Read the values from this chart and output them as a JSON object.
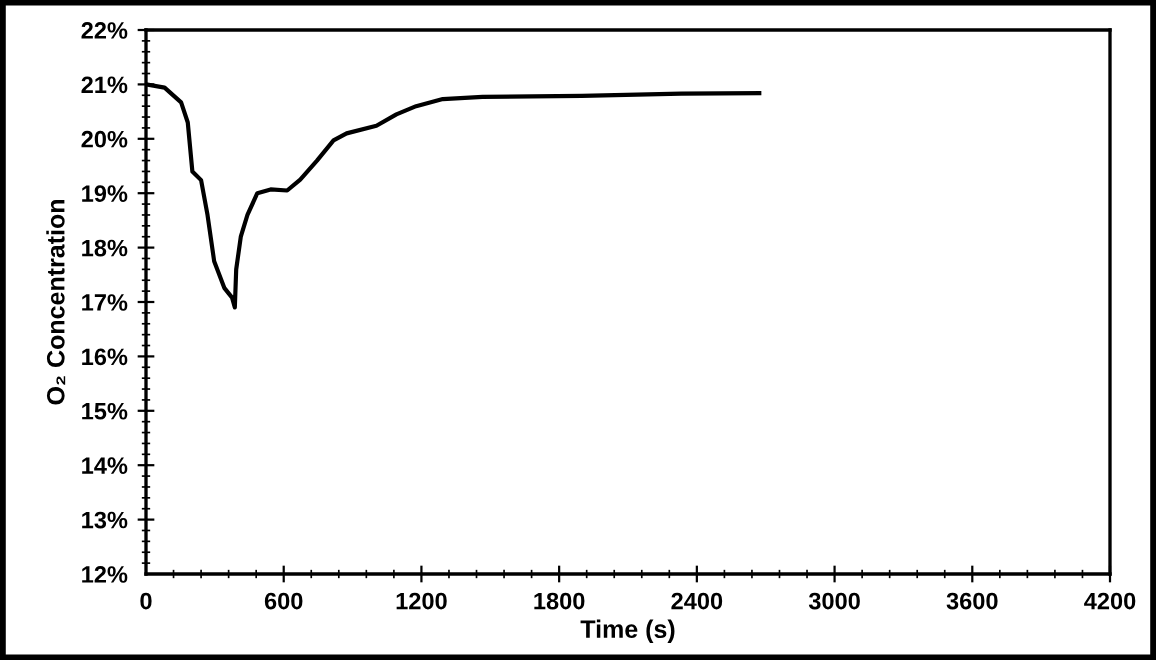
{
  "chart_data": {
    "type": "line",
    "xlabel": "Time (s)",
    "ylabel": "O₂ Concentration",
    "x": [
      0,
      81,
      153,
      182,
      202,
      240,
      268,
      297,
      341,
      375,
      387,
      393,
      413,
      442,
      485,
      543,
      615,
      672,
      745,
      817,
      874,
      1004,
      1091,
      1177,
      1293,
      1466,
      1899,
      2332,
      2672
    ],
    "series": [
      {
        "color": "#000000",
        "values": [
          21.0,
          20.94,
          20.67,
          20.3,
          19.4,
          19.24,
          18.6,
          17.75,
          17.26,
          17.08,
          16.9,
          17.6,
          18.2,
          18.6,
          19.0,
          19.07,
          19.05,
          19.25,
          19.6,
          19.97,
          20.1,
          20.24,
          20.45,
          20.6,
          20.73,
          20.77,
          20.79,
          20.83,
          20.84
        ]
      }
    ],
    "xlim": [
      0,
      4200
    ],
    "xticks": [
      0,
      600,
      1200,
      1800,
      2400,
      3000,
      3600,
      4200
    ],
    "ylim": [
      12,
      22
    ],
    "yticks": [
      {
        "value": 12,
        "label": "12%"
      },
      {
        "value": 13,
        "label": "13%"
      },
      {
        "value": 14,
        "label": "14%"
      },
      {
        "value": 15,
        "label": "15%"
      },
      {
        "value": 16,
        "label": "16%"
      },
      {
        "value": 17,
        "label": "17%"
      },
      {
        "value": 18,
        "label": "18%"
      },
      {
        "value": 19,
        "label": "19%"
      },
      {
        "value": 20,
        "label": "20%"
      },
      {
        "value": 21,
        "label": "21%"
      },
      {
        "value": 22,
        "label": "22%"
      }
    ],
    "grid": false,
    "marker": "none",
    "line_style": "solid"
  }
}
